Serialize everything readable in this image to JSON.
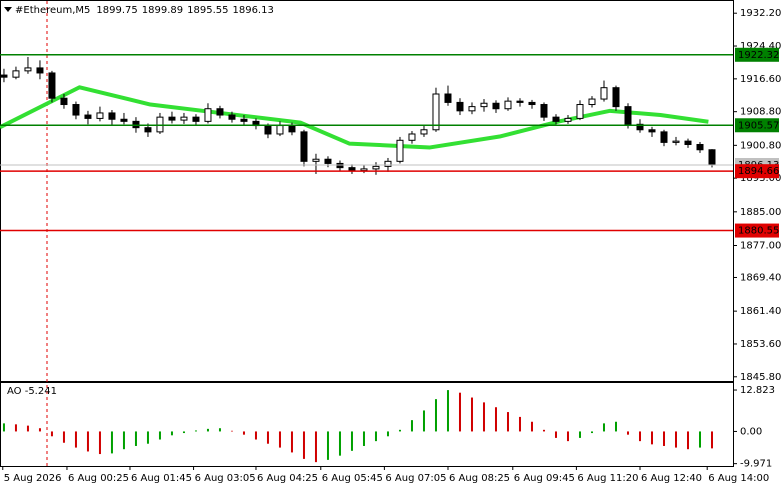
{
  "chart_data": [
    {
      "type": "candlestick",
      "title": "#Ethereum,M5",
      "ohlc": [
        [
          1917.5,
          1919.0,
          1915.8,
          1917.0
        ],
        [
          1917.0,
          1919.5,
          1916.5,
          1918.5
        ],
        [
          1918.5,
          1921.8,
          1917.8,
          1919.2
        ],
        [
          1919.2,
          1921.0,
          1916.5,
          1918.0
        ],
        [
          1918.0,
          1918.5,
          1911.0,
          1912.0
        ],
        [
          1912.0,
          1913.0,
          1909.5,
          1910.5
        ],
        [
          1910.5,
          1911.2,
          1907.0,
          1908.0
        ],
        [
          1908.0,
          1909.0,
          1905.8,
          1907.2
        ],
        [
          1907.2,
          1910.0,
          1906.5,
          1908.5
        ],
        [
          1908.5,
          1909.2,
          1905.5,
          1907.0
        ],
        [
          1907.0,
          1908.5,
          1905.8,
          1906.5
        ],
        [
          1906.5,
          1907.5,
          1903.8,
          1905.0
        ],
        [
          1905.0,
          1906.0,
          1902.8,
          1904.0
        ],
        [
          1904.0,
          1908.5,
          1903.5,
          1907.5
        ],
        [
          1907.5,
          1908.8,
          1906.0,
          1906.8
        ],
        [
          1906.8,
          1908.5,
          1905.9,
          1907.5
        ],
        [
          1907.5,
          1908.2,
          1905.5,
          1906.5
        ],
        [
          1906.5,
          1910.8,
          1906.0,
          1909.5
        ],
        [
          1909.5,
          1910.2,
          1907.2,
          1908.0
        ],
        [
          1908.0,
          1908.8,
          1906.2,
          1907.0
        ],
        [
          1907.0,
          1908.0,
          1905.6,
          1906.5
        ],
        [
          1906.5,
          1907.2,
          1904.6,
          1905.5
        ],
        [
          1905.5,
          1906.0,
          1902.5,
          1903.5
        ],
        [
          1903.5,
          1906.5,
          1903.0,
          1905.5
        ],
        [
          1905.5,
          1906.2,
          1903.2,
          1904.0
        ],
        [
          1904.0,
          1904.5,
          1895.8,
          1897.0
        ],
        [
          1897.0,
          1898.8,
          1894.0,
          1897.5
        ],
        [
          1897.5,
          1898.2,
          1895.6,
          1896.5
        ],
        [
          1896.5,
          1897.2,
          1894.6,
          1895.5
        ],
        [
          1895.5,
          1896.3,
          1894.0,
          1894.8
        ],
        [
          1894.8,
          1896.0,
          1894.2,
          1895.2
        ],
        [
          1895.2,
          1896.8,
          1893.8,
          1895.8
        ],
        [
          1895.8,
          1897.8,
          1894.5,
          1897.0
        ],
        [
          1897.0,
          1902.8,
          1896.5,
          1902.0
        ],
        [
          1902.0,
          1904.2,
          1901.2,
          1903.5
        ],
        [
          1903.5,
          1905.5,
          1902.8,
          1904.5
        ],
        [
          1904.5,
          1914.5,
          1904.0,
          1913.0
        ],
        [
          1913.0,
          1915.0,
          1910.2,
          1911.0
        ],
        [
          1911.0,
          1912.0,
          1908.0,
          1909.0
        ],
        [
          1909.0,
          1911.0,
          1908.2,
          1910.0
        ],
        [
          1910.0,
          1911.8,
          1908.8,
          1910.8
        ],
        [
          1910.8,
          1911.5,
          1908.5,
          1909.5
        ],
        [
          1909.5,
          1912.2,
          1909.0,
          1911.3
        ],
        [
          1911.3,
          1912.0,
          1910.0,
          1911.0
        ],
        [
          1911.0,
          1911.6,
          1909.5,
          1910.5
        ],
        [
          1910.5,
          1911.0,
          1906.6,
          1907.5
        ],
        [
          1907.5,
          1908.2,
          1905.8,
          1906.5
        ],
        [
          1906.5,
          1908.0,
          1905.9,
          1907.2
        ],
        [
          1907.2,
          1911.5,
          1906.8,
          1910.5
        ],
        [
          1910.5,
          1912.5,
          1909.8,
          1911.8
        ],
        [
          1911.8,
          1916.2,
          1911.2,
          1914.5
        ],
        [
          1914.5,
          1915.0,
          1909.0,
          1910.0
        ],
        [
          1910.0,
          1910.8,
          1904.8,
          1905.8
        ],
        [
          1905.8,
          1907.0,
          1903.8,
          1904.5
        ],
        [
          1904.5,
          1905.2,
          1902.8,
          1904.0
        ],
        [
          1904.0,
          1904.5,
          1900.6,
          1901.5
        ],
        [
          1901.5,
          1902.8,
          1900.8,
          1901.8
        ],
        [
          1901.8,
          1902.4,
          1900.2,
          1901.0
        ],
        [
          1901.0,
          1901.6,
          1899.0,
          1899.75
        ],
        [
          1899.75,
          1899.89,
          1895.55,
          1896.13
        ]
      ],
      "xlim": [
        -0.33,
        60.75
      ],
      "xticks": [
        {
          "value": -0.1,
          "label": "5 Aug 2026"
        },
        {
          "value": 5.25,
          "label": "6 Aug 00:25"
        },
        {
          "value": 10.5,
          "label": "6 Aug 01:45"
        },
        {
          "value": 15.8,
          "label": "6 Aug 03:05"
        },
        {
          "value": 21,
          "label": "6 Aug 04:25"
        },
        {
          "value": 26.4,
          "label": "6 Aug 05:45"
        },
        {
          "value": 31.7,
          "label": "6 Aug 07:05"
        },
        {
          "value": 37,
          "label": "6 Aug 08:25"
        },
        {
          "value": 42.4,
          "label": "6 Aug 09:45"
        },
        {
          "value": 47.7,
          "label": "6 Aug 11:20"
        },
        {
          "value": 53,
          "label": "6 Aug 12:40"
        },
        {
          "value": 58.6,
          "label": "6 Aug 14:00"
        }
      ],
      "ylim": [
        1844.8,
        1935.1
      ],
      "yticks": [
        {
          "value": 1932.2,
          "label": "1932.20"
        },
        {
          "value": 1924.4,
          "label": "1924.40"
        },
        {
          "value": 1916.6,
          "label": "1916.60"
        },
        {
          "value": 1908.8,
          "label": "1908.80"
        },
        {
          "value": 1900.8,
          "label": "1900.80"
        },
        {
          "value": 1893,
          "label": "1893.00"
        },
        {
          "value": 1885,
          "label": "1885.00"
        },
        {
          "value": 1877,
          "label": "1877.00"
        },
        {
          "value": 1869.4,
          "label": "1869.40"
        },
        {
          "value": 1861.4,
          "label": "1861.40"
        },
        {
          "value": 1853.6,
          "label": "1853.60"
        },
        {
          "value": 1845.8,
          "label": "1845.80"
        }
      ],
      "levels": [
        {
          "value": 1922.32,
          "color": "#008000"
        },
        {
          "value": 1905.57,
          "color": "#008000"
        },
        {
          "value": 1894.66,
          "color": "#e00000"
        },
        {
          "value": 1880.55,
          "color": "#e00000"
        }
      ],
      "ma": {
        "color": "#33e033",
        "x": [
          -0.33,
          6.3,
          12.2,
          18,
          24.7,
          28.8,
          35.5,
          41.3,
          46.3,
          50.5,
          54.7,
          58.7
        ],
        "values": [
          1905.1,
          1914.6,
          1910.5,
          1908.5,
          1906.2,
          1901.2,
          1900.3,
          1902.9,
          1906.5,
          1909.0,
          1908.0,
          1906.4
        ]
      }
    },
    {
      "type": "bar",
      "title": "AO -5.241",
      "up_color": "#00a000",
      "down_color": "#d00000",
      "values": [
        2.5,
        2.2,
        1.8,
        1.0,
        -1.5,
        -3.5,
        -5.0,
        -6.2,
        -7.0,
        -6.8,
        -5.5,
        -4.5,
        -3.8,
        -2.5,
        -1.2,
        -0.5,
        0.3,
        0.8,
        1.0,
        0.2,
        -1.0,
        -2.5,
        -3.8,
        -5.0,
        -6.5,
        -8.5,
        -9.5,
        -8.8,
        -7.5,
        -6.0,
        -4.5,
        -3.0,
        -1.5,
        0.5,
        3.5,
        6.5,
        10.0,
        12.8,
        12.0,
        10.5,
        9.0,
        7.5,
        6.0,
        4.5,
        3.0,
        0.5,
        -2.0,
        -3.0,
        -2.0,
        -0.5,
        2.5,
        3.0,
        -1.0,
        -3.0,
        -4.0,
        -4.5,
        -5.0,
        -5.5,
        -5.0,
        -5.241
      ],
      "ylim": [
        -10.7,
        15.0
      ],
      "yticks": [
        {
          "value": 12.823,
          "label": "12.823"
        },
        {
          "value": 0,
          "label": "0.00"
        },
        {
          "value": -9.971,
          "label": "-9.971"
        }
      ]
    }
  ]
}
